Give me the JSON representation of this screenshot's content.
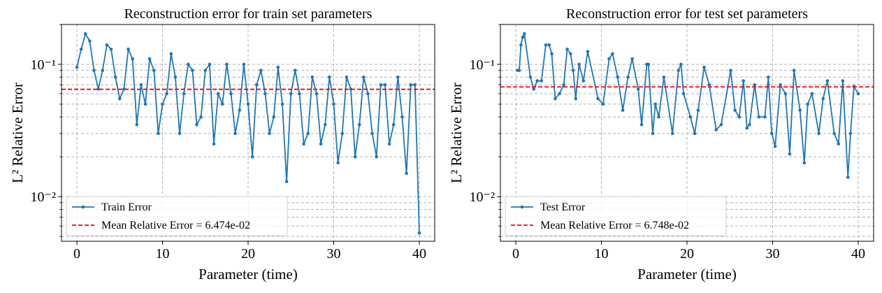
{
  "chart_data": [
    {
      "type": "line",
      "title": "Reconstruction error for train set parameters",
      "xlabel": "Parameter (time)",
      "ylabel": "L² Relative Error",
      "log_y": true,
      "grid": true,
      "legend": "lower left",
      "xlim": [
        -1.8,
        41.8
      ],
      "ylim": [
        0.0046,
        0.2
      ],
      "xticks": [
        0,
        10,
        20,
        30,
        40
      ],
      "yticks": [
        {
          "value": 0.01,
          "label": "10⁻²"
        },
        {
          "value": 0.1,
          "label": "10⁻¹"
        }
      ],
      "minor_yticks": [
        0.005,
        0.006,
        0.007,
        0.008,
        0.009,
        0.02,
        0.03,
        0.04,
        0.05,
        0.06,
        0.07,
        0.08,
        0.09,
        0.2
      ],
      "x": [
        0,
        0.5,
        1,
        1.5,
        2,
        2.5,
        3,
        3.5,
        4,
        4.5,
        5,
        5.5,
        6,
        6.5,
        7,
        7.5,
        8,
        8.5,
        9,
        9.5,
        10,
        10.5,
        11,
        11.5,
        12,
        12.5,
        13,
        13.5,
        14,
        14.5,
        15,
        15.5,
        16,
        16.5,
        17,
        17.5,
        18,
        18.5,
        19,
        19.5,
        20,
        20.5,
        21,
        21.5,
        22,
        22.5,
        23,
        23.5,
        24,
        24.5,
        25,
        25.5,
        26,
        26.5,
        27,
        27.5,
        28,
        28.5,
        29,
        29.5,
        30,
        30.5,
        31,
        31.5,
        32,
        32.5,
        33,
        33.5,
        34,
        34.5,
        35,
        35.5,
        36,
        36.5,
        37,
        37.5,
        38,
        38.5,
        39,
        39.5,
        40
      ],
      "series": [
        {
          "name": "Train Error",
          "color": "#1f77b4",
          "values": [
            0.095,
            0.13,
            0.17,
            0.15,
            0.09,
            0.065,
            0.09,
            0.14,
            0.13,
            0.08,
            0.055,
            0.065,
            0.13,
            0.11,
            0.035,
            0.07,
            0.05,
            0.11,
            0.09,
            0.03,
            0.05,
            0.06,
            0.12,
            0.08,
            0.03,
            0.06,
            0.1,
            0.09,
            0.035,
            0.04,
            0.09,
            0.1,
            0.025,
            0.06,
            0.05,
            0.1,
            0.06,
            0.03,
            0.045,
            0.1,
            0.05,
            0.02,
            0.07,
            0.09,
            0.06,
            0.03,
            0.04,
            0.095,
            0.05,
            0.013,
            0.06,
            0.09,
            0.06,
            0.025,
            0.03,
            0.08,
            0.06,
            0.025,
            0.035,
            0.08,
            0.05,
            0.018,
            0.03,
            0.08,
            0.065,
            0.02,
            0.035,
            0.08,
            0.06,
            0.03,
            0.02,
            0.07,
            0.07,
            0.025,
            0.035,
            0.08,
            0.04,
            0.015,
            0.07,
            0.07,
            0.0053
          ]
        }
      ],
      "mean": 0.06474,
      "mean_color": "#ff0000",
      "mean_label": "Mean Relative Error = 6.474e-02"
    },
    {
      "type": "line",
      "title": "Reconstruction error for test set parameters",
      "xlabel": "Parameter (time)",
      "ylabel": "L² Relative Error",
      "log_y": true,
      "grid": true,
      "legend": "lower left",
      "xlim": [
        -1.8,
        41.8
      ],
      "ylim": [
        0.0046,
        0.2
      ],
      "xticks": [
        0,
        10,
        20,
        30,
        40
      ],
      "yticks": [
        {
          "value": 0.01,
          "label": "10⁻²"
        },
        {
          "value": 0.1,
          "label": "10⁻¹"
        }
      ],
      "minor_yticks": [
        0.005,
        0.006,
        0.007,
        0.008,
        0.009,
        0.02,
        0.03,
        0.04,
        0.05,
        0.06,
        0.07,
        0.08,
        0.09,
        0.2
      ],
      "x": [
        0.2,
        0.4,
        0.6,
        0.8,
        1.0,
        1.7,
        2.1,
        2.5,
        3.0,
        3.5,
        3.9,
        4.2,
        4.6,
        5.1,
        5.6,
        6.0,
        6.4,
        6.7,
        7.0,
        7.4,
        7.9,
        8.4,
        9.6,
        10.2,
        10.9,
        11.3,
        11.9,
        12.5,
        13.1,
        13.6,
        14.3,
        14.7,
        15.3,
        15.5,
        16.0,
        16.3,
        16.7,
        17.3,
        18.3,
        19.0,
        19.3,
        19.6,
        20.4,
        20.9,
        21.3,
        22.0,
        22.6,
        23.4,
        24.0,
        25.1,
        25.6,
        26.1,
        26.6,
        27.0,
        27.3,
        27.9,
        28.4,
        29.1,
        29.5,
        29.9,
        30.3,
        30.9,
        31.5,
        32.0,
        32.5,
        33.2,
        33.7,
        34.1,
        34.6,
        35.4,
        35.9,
        36.4,
        37.2,
        37.7,
        38.2,
        38.8,
        39.1,
        39.5,
        40.0
      ],
      "series": [
        {
          "name": "Test Error",
          "color": "#1f77b4",
          "values": [
            0.09,
            0.09,
            0.14,
            0.16,
            0.17,
            0.08,
            0.065,
            0.075,
            0.075,
            0.14,
            0.14,
            0.12,
            0.055,
            0.06,
            0.07,
            0.13,
            0.12,
            0.09,
            0.055,
            0.1,
            0.075,
            0.125,
            0.055,
            0.05,
            0.11,
            0.12,
            0.08,
            0.045,
            0.08,
            0.11,
            0.065,
            0.035,
            0.1,
            0.1,
            0.03,
            0.05,
            0.04,
            0.08,
            0.03,
            0.09,
            0.1,
            0.06,
            0.04,
            0.03,
            0.045,
            0.095,
            0.07,
            0.032,
            0.035,
            0.09,
            0.045,
            0.04,
            0.075,
            0.033,
            0.035,
            0.07,
            0.04,
            0.04,
            0.08,
            0.03,
            0.024,
            0.07,
            0.06,
            0.021,
            0.09,
            0.045,
            0.018,
            0.05,
            0.06,
            0.03,
            0.055,
            0.075,
            0.03,
            0.025,
            0.075,
            0.014,
            0.03,
            0.068,
            0.06
          ]
        }
      ],
      "mean": 0.06748,
      "mean_color": "#ff0000",
      "mean_label": "Mean Relative Error = 6.748e-02"
    }
  ]
}
